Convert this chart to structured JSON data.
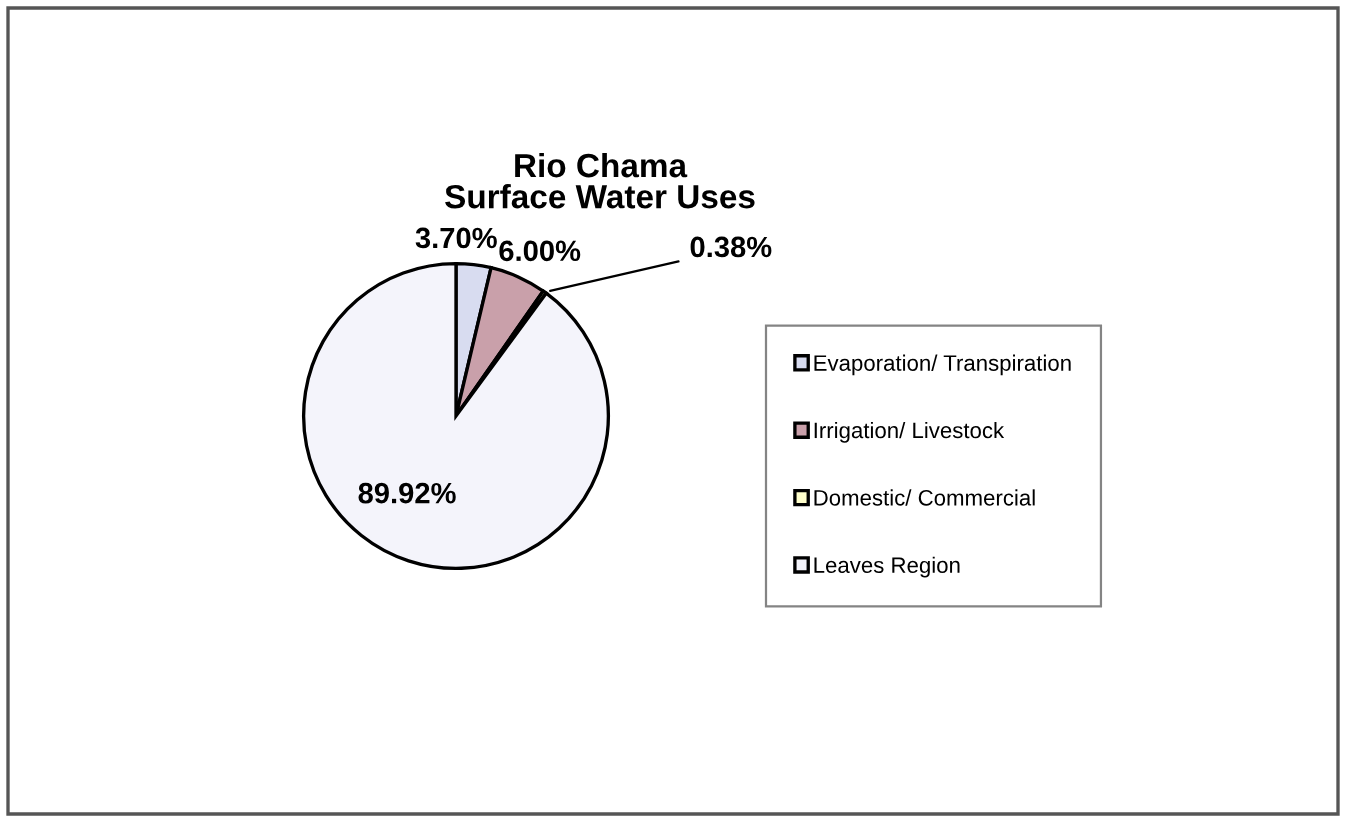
{
  "chart_data": {
    "type": "pie",
    "title": "Rio Chama\nSurface Water Uses",
    "categories": [
      "Evaporation/ Transpiration",
      "Irrigation/ Livestock",
      "Domestic/ Commercial",
      "Leaves Region"
    ],
    "values": [
      3.7,
      6.0,
      0.38,
      89.92
    ],
    "colors": [
      "#d8dcf0",
      "#c9a0aa",
      "#ffffcc",
      "#f4f4fb"
    ],
    "value_labels": [
      "3.70%",
      "6.00%",
      "0.38%",
      "89.92%"
    ],
    "legend": "right"
  }
}
